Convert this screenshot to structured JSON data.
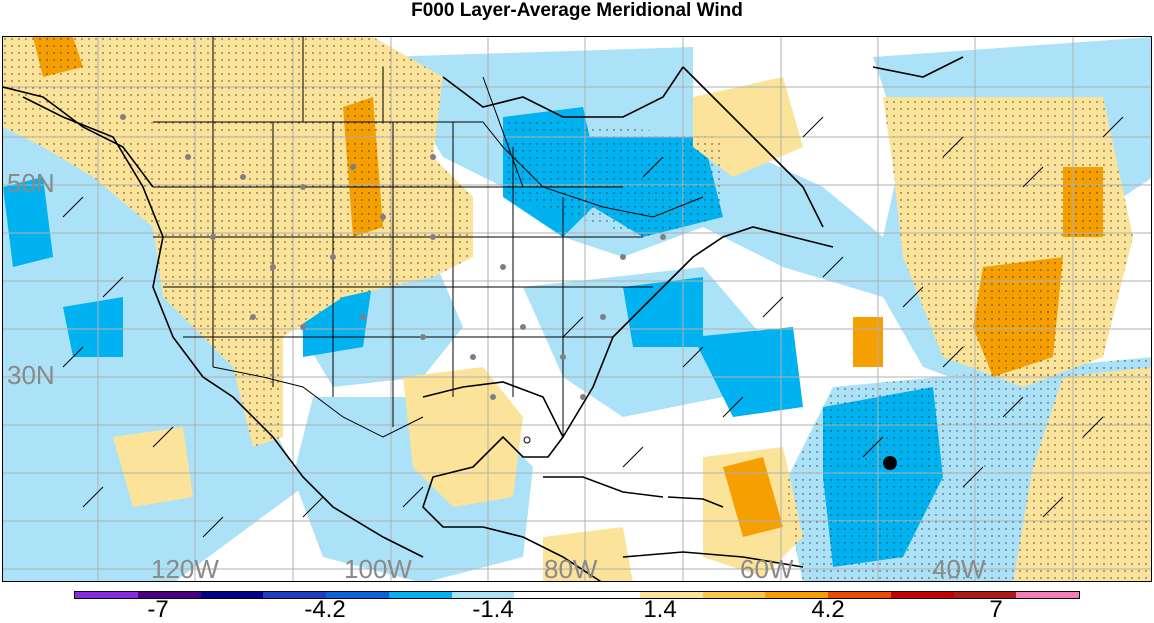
{
  "title": "F000 Layer-Average Meridional Wind",
  "map": {
    "latitude_labels": [
      "50N",
      "30N"
    ],
    "longitude_labels": [
      "120W",
      "100W",
      "80W",
      "60W",
      "40W"
    ],
    "marker": "storm-center-dot"
  },
  "colorbar": {
    "colors": [
      "#8a2be2",
      "#4b0082",
      "#00008b",
      "#1c3fc4",
      "#0a63d9",
      "#00b3f0",
      "#abe2f7",
      "#ffffff",
      "#ffffff",
      "#fbe49a",
      "#f9c64b",
      "#f5a000",
      "#ef4b00",
      "#c40000",
      "#b01818",
      "#f47fb8"
    ],
    "tick_labels": [
      "-7",
      "-4.2",
      "-1.4",
      "1.4",
      "4.2",
      "7"
    ]
  },
  "colors": {
    "light_blue": "#abe2f7",
    "blue": "#00b3f0",
    "light_yellow": "#fbe49a",
    "orange": "#f5a000",
    "gridline": "#b0b0b0",
    "label_gray": "#8a8a8a"
  }
}
